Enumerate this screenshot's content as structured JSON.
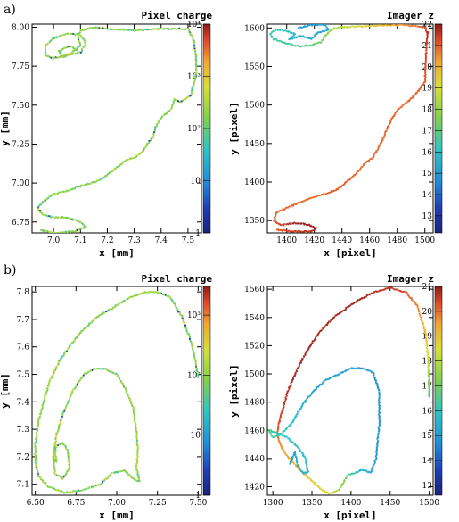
{
  "panel_labels": [
    "a)",
    "b)"
  ],
  "chart_data": [
    {
      "type": "scatter",
      "panel": "a)",
      "title": "Pixel charge",
      "xlabel": "x [mm]",
      "ylabel": "y [mm]",
      "xlim": [
        6.92,
        7.55
      ],
      "ylim": [
        6.68,
        8.02
      ],
      "xticks": [
        "7.0",
        "7.1",
        "7.2",
        "7.3",
        "7.4",
        "7.5"
      ],
      "xtick_values": [
        7.0,
        7.1,
        7.2,
        7.3,
        7.4,
        7.5
      ],
      "yticks": [
        "6.75",
        "7.00",
        "7.25",
        "7.50",
        "7.75",
        "8.00"
      ],
      "ytick_values": [
        6.75,
        7.0,
        7.25,
        7.5,
        7.75,
        8.0
      ],
      "colorbar": {
        "scale": "log",
        "range": [
          1,
          10000
        ],
        "ticks": [
          "1",
          "10",
          "10²",
          "10³",
          "10⁴"
        ],
        "tick_values": [
          1,
          10,
          100,
          1000,
          10000
        ]
      },
      "color_mode": "charge",
      "track": [
        [
          7.53,
          7.82
        ],
        [
          7.53,
          7.7
        ],
        [
          7.51,
          7.56
        ],
        [
          7.47,
          7.52
        ],
        [
          7.45,
          7.54
        ],
        [
          7.44,
          7.48
        ],
        [
          7.42,
          7.45
        ],
        [
          7.4,
          7.42
        ],
        [
          7.38,
          7.36
        ],
        [
          7.37,
          7.3
        ],
        [
          7.35,
          7.25
        ],
        [
          7.33,
          7.2
        ],
        [
          7.3,
          7.16
        ],
        [
          7.27,
          7.15
        ],
        [
          7.25,
          7.12
        ],
        [
          7.22,
          7.08
        ],
        [
          7.2,
          7.05
        ],
        [
          7.17,
          7.02
        ],
        [
          7.14,
          7.0
        ],
        [
          7.1,
          6.98
        ],
        [
          7.05,
          6.95
        ],
        [
          7.0,
          6.93
        ],
        [
          6.96,
          6.88
        ],
        [
          6.94,
          6.84
        ],
        [
          6.96,
          6.8
        ],
        [
          7.0,
          6.78
        ],
        [
          7.05,
          6.78
        ],
        [
          7.1,
          6.75
        ],
        [
          7.12,
          6.72
        ],
        [
          7.08,
          6.69
        ],
        [
          7.0,
          6.68
        ],
        [
          6.95,
          6.7
        ]
      ],
      "loop": [
        [
          7.53,
          7.82
        ],
        [
          7.52,
          7.92
        ],
        [
          7.5,
          7.99
        ],
        [
          7.4,
          7.99
        ],
        [
          7.3,
          7.98
        ],
        [
          7.2,
          7.99
        ],
        [
          7.15,
          8.0
        ],
        [
          7.1,
          7.98
        ],
        [
          7.09,
          7.93
        ],
        [
          7.1,
          7.88
        ],
        [
          7.06,
          7.83
        ],
        [
          7.0,
          7.8
        ],
        [
          6.97,
          7.82
        ],
        [
          6.97,
          7.88
        ],
        [
          7.0,
          7.93
        ],
        [
          7.05,
          7.96
        ],
        [
          7.1,
          7.95
        ],
        [
          7.12,
          7.9
        ],
        [
          7.1,
          7.84
        ],
        [
          7.03,
          7.81
        ],
        [
          7.02,
          7.85
        ],
        [
          7.06,
          7.88
        ],
        [
          7.09,
          7.85
        ]
      ]
    },
    {
      "type": "scatter",
      "panel": "a)",
      "title": "Imager z",
      "xlabel": "x [pixel]",
      "ylabel": "y [pixel]",
      "xlim": [
        1386,
        1506
      ],
      "ylim": [
        1334,
        1605
      ],
      "xticks": [
        "1400",
        "1420",
        "1440",
        "1460",
        "1480",
        "1500"
      ],
      "xtick_values": [
        1400,
        1420,
        1440,
        1460,
        1480,
        1500
      ],
      "yticks": [
        "1350",
        "1400",
        "1450",
        "1500",
        "1550",
        "1600"
      ],
      "ytick_values": [
        1350,
        1400,
        1450,
        1500,
        1550,
        1600
      ],
      "colorbar": {
        "scale": "linear",
        "range": [
          12.2,
          22
        ],
        "ticks": [
          "13",
          "14",
          "15",
          "16",
          "17",
          "18",
          "19",
          "20",
          "21",
          "22"
        ],
        "tick_values": [
          13,
          14,
          15,
          16,
          17,
          18,
          19,
          20,
          21,
          22
        ]
      },
      "color_mode": "z",
      "track": [
        [
          1502,
          1594
        ],
        [
          1501,
          1570
        ],
        [
          1500,
          1530
        ],
        [
          1495,
          1518
        ],
        [
          1492,
          1512
        ],
        [
          1489,
          1506
        ],
        [
          1484,
          1500
        ],
        [
          1480,
          1493
        ],
        [
          1476,
          1482
        ],
        [
          1473,
          1471
        ],
        [
          1470,
          1458
        ],
        [
          1466,
          1443
        ],
        [
          1462,
          1431
        ],
        [
          1457,
          1425
        ],
        [
          1452,
          1414
        ],
        [
          1447,
          1406
        ],
        [
          1442,
          1398
        ],
        [
          1437,
          1391
        ],
        [
          1430,
          1386
        ],
        [
          1420,
          1381
        ],
        [
          1410,
          1374
        ],
        [
          1402,
          1368
        ],
        [
          1392,
          1360
        ],
        [
          1391,
          1350
        ],
        [
          1396,
          1344
        ],
        [
          1405,
          1347
        ],
        [
          1415,
          1345
        ],
        [
          1421,
          1340
        ],
        [
          1418,
          1336
        ],
        [
          1405,
          1336
        ],
        [
          1392,
          1338
        ]
      ],
      "track_z": [
        21.6,
        21.3,
        21.0,
        21.0,
        20.9,
        21.0,
        20.8,
        20.8,
        20.9,
        21.0,
        20.8,
        20.9,
        21.0,
        20.9,
        20.8,
        20.9,
        21.0,
        20.9,
        21.0,
        20.8,
        20.8,
        21.0,
        20.9,
        21.1,
        21.4,
        21.8,
        22.0,
        21.8,
        21.6,
        21.4,
        21.0
      ],
      "loop": [
        [
          1502,
          1594
        ],
        [
          1500,
          1601
        ],
        [
          1485,
          1604
        ],
        [
          1465,
          1603
        ],
        [
          1450,
          1602
        ],
        [
          1438,
          1601
        ],
        [
          1432,
          1598
        ],
        [
          1428,
          1590
        ],
        [
          1425,
          1582
        ],
        [
          1418,
          1578
        ],
        [
          1410,
          1576
        ],
        [
          1400,
          1580
        ],
        [
          1390,
          1586
        ],
        [
          1388,
          1593
        ],
        [
          1392,
          1598
        ],
        [
          1400,
          1596
        ],
        [
          1406,
          1592
        ],
        [
          1402,
          1585
        ],
        [
          1410,
          1590
        ],
        [
          1418,
          1586
        ],
        [
          1422,
          1594
        ],
        [
          1430,
          1598
        ],
        [
          1428,
          1604
        ],
        [
          1418,
          1604
        ],
        [
          1408,
          1600
        ]
      ],
      "loop_z": [
        21.6,
        21.0,
        20.5,
        19.6,
        19.0,
        18.5,
        18.0,
        17.6,
        17.3,
        17.0,
        16.8,
        16.6,
        16.5,
        16.4,
        16.3,
        16.2,
        15.8,
        15.6,
        15.4,
        15.4,
        15.3,
        15.2,
        15.2,
        15.1,
        15.0
      ]
    },
    {
      "type": "scatter",
      "panel": "b)",
      "title": "Pixel charge",
      "xlabel": "x [mm]",
      "ylabel": "y [mm]",
      "xlim": [
        6.48,
        7.52
      ],
      "ylim": [
        7.06,
        7.82
      ],
      "xticks": [
        "6.50",
        "6.75",
        "7.00",
        "7.25",
        "7.50"
      ],
      "xtick_values": [
        6.5,
        6.75,
        7.0,
        7.25,
        7.5
      ],
      "yticks": [
        "7.1",
        "7.2",
        "7.3",
        "7.4",
        "7.5",
        "7.6",
        "7.7",
        "7.8"
      ],
      "ytick_values": [
        7.1,
        7.2,
        7.3,
        7.4,
        7.5,
        7.6,
        7.7,
        7.8
      ],
      "colorbar": {
        "scale": "log",
        "range": [
          1,
          3000
        ],
        "ticks": [
          "1",
          "10",
          "10²",
          "10³"
        ],
        "tick_values": [
          1,
          10,
          100,
          1000
        ]
      },
      "color_mode": "charge",
      "track": [
        [
          7.5,
          7.49
        ],
        [
          7.48,
          7.56
        ],
        [
          7.45,
          7.63
        ],
        [
          7.4,
          7.71
        ],
        [
          7.33,
          7.78
        ],
        [
          7.25,
          7.8
        ],
        [
          7.18,
          7.8
        ],
        [
          7.08,
          7.78
        ],
        [
          6.97,
          7.74
        ],
        [
          6.88,
          7.71
        ],
        [
          6.79,
          7.66
        ],
        [
          6.72,
          7.61
        ],
        [
          6.65,
          7.55
        ],
        [
          6.59,
          7.48
        ],
        [
          6.55,
          7.4
        ],
        [
          6.52,
          7.33
        ],
        [
          6.5,
          7.25
        ],
        [
          6.5,
          7.18
        ],
        [
          6.52,
          7.13
        ],
        [
          6.58,
          7.09
        ],
        [
          6.68,
          7.07
        ],
        [
          6.8,
          7.08
        ],
        [
          6.9,
          7.1
        ],
        [
          6.97,
          7.14
        ],
        [
          7.05,
          7.15
        ],
        [
          7.1,
          7.12
        ],
        [
          7.14,
          7.11
        ]
      ],
      "loop": [
        [
          7.14,
          7.11
        ],
        [
          7.12,
          7.16
        ],
        [
          7.13,
          7.22
        ],
        [
          7.12,
          7.3
        ],
        [
          7.1,
          7.38
        ],
        [
          7.05,
          7.45
        ],
        [
          7.0,
          7.5
        ],
        [
          6.93,
          7.52
        ],
        [
          6.86,
          7.52
        ],
        [
          6.8,
          7.5
        ],
        [
          6.73,
          7.44
        ],
        [
          6.67,
          7.36
        ],
        [
          6.63,
          7.28
        ],
        [
          6.61,
          7.2
        ],
        [
          6.62,
          7.14
        ],
        [
          6.67,
          7.12
        ],
        [
          6.71,
          7.16
        ],
        [
          6.7,
          7.22
        ],
        [
          6.67,
          7.25
        ],
        [
          6.63,
          7.24
        ],
        [
          6.61,
          7.2
        ],
        [
          6.63,
          7.18
        ],
        [
          6.62,
          7.22
        ]
      ]
    },
    {
      "type": "scatter",
      "panel": "b)",
      "title": "Imager z",
      "xlabel": "x [pixel]",
      "ylabel": "y [pixel]",
      "xlim": [
        1293,
        1505
      ],
      "ylim": [
        1414,
        1562
      ],
      "xticks": [
        "1300",
        "1350",
        "1400",
        "1450",
        "1500"
      ],
      "xtick_values": [
        1300,
        1350,
        1400,
        1450,
        1500
      ],
      "yticks": [
        "1420",
        "1440",
        "1460",
        "1480",
        "1500",
        "1520",
        "1540",
        "1560"
      ],
      "ytick_values": [
        1420,
        1440,
        1460,
        1480,
        1500,
        1520,
        1540,
        1560
      ],
      "colorbar": {
        "scale": "linear",
        "range": [
          12.6,
          21
        ],
        "ticks": [
          "13",
          "14",
          "15",
          "16",
          "17",
          "18",
          "19",
          "20",
          "21"
        ],
        "tick_values": [
          13,
          14,
          15,
          16,
          17,
          18,
          19,
          20,
          21
        ]
      },
      "color_mode": "z",
      "track": [
        [
          1500,
          1484
        ],
        [
          1499,
          1510
        ],
        [
          1495,
          1530
        ],
        [
          1485,
          1548
        ],
        [
          1470,
          1558
        ],
        [
          1450,
          1561
        ],
        [
          1430,
          1558
        ],
        [
          1405,
          1551
        ],
        [
          1380,
          1541
        ],
        [
          1360,
          1530
        ],
        [
          1345,
          1518
        ],
        [
          1330,
          1502
        ],
        [
          1318,
          1486
        ],
        [
          1310,
          1470
        ],
        [
          1306,
          1460
        ],
        [
          1308,
          1452
        ],
        [
          1315,
          1444
        ],
        [
          1325,
          1438
        ],
        [
          1338,
          1430
        ],
        [
          1350,
          1424
        ],
        [
          1362,
          1418
        ],
        [
          1372,
          1415
        ]
      ],
      "track_z": [
        16.5,
        18.3,
        19.2,
        19.8,
        20.3,
        20.6,
        20.7,
        20.8,
        20.8,
        20.8,
        20.9,
        20.8,
        20.7,
        20.5,
        20.2,
        19.8,
        19.5,
        19.3,
        19.2,
        19.0,
        18.8,
        18.6
      ],
      "loop": [
        [
          1372,
          1415
        ],
        [
          1385,
          1418
        ],
        [
          1395,
          1428
        ],
        [
          1405,
          1430
        ],
        [
          1415,
          1432
        ],
        [
          1425,
          1430
        ],
        [
          1432,
          1440
        ],
        [
          1436,
          1465
        ],
        [
          1436,
          1488
        ],
        [
          1428,
          1501
        ],
        [
          1415,
          1504
        ],
        [
          1400,
          1504
        ],
        [
          1385,
          1500
        ],
        [
          1368,
          1496
        ],
        [
          1352,
          1488
        ],
        [
          1338,
          1478
        ],
        [
          1325,
          1466
        ],
        [
          1312,
          1458
        ],
        [
          1300,
          1455
        ],
        [
          1295,
          1460
        ],
        [
          1305,
          1458
        ],
        [
          1318,
          1455
        ],
        [
          1332,
          1448
        ],
        [
          1342,
          1440
        ],
        [
          1345,
          1430
        ],
        [
          1338,
          1430
        ],
        [
          1332,
          1435
        ],
        [
          1328,
          1445
        ],
        [
          1325,
          1440
        ],
        [
          1322,
          1436
        ],
        [
          1326,
          1442
        ]
      ],
      "loop_z": [
        18.4,
        17.8,
        16.8,
        16.0,
        15.5,
        15.2,
        15.0,
        14.9,
        14.8,
        14.8,
        14.9,
        15.0,
        15.1,
        15.2,
        15.3,
        15.5,
        15.8,
        16.0,
        16.3,
        16.5,
        16.2,
        16.0,
        15.8,
        15.8,
        15.6,
        15.5,
        15.4,
        15.3,
        15.2,
        15.1,
        15.0
      ]
    }
  ]
}
